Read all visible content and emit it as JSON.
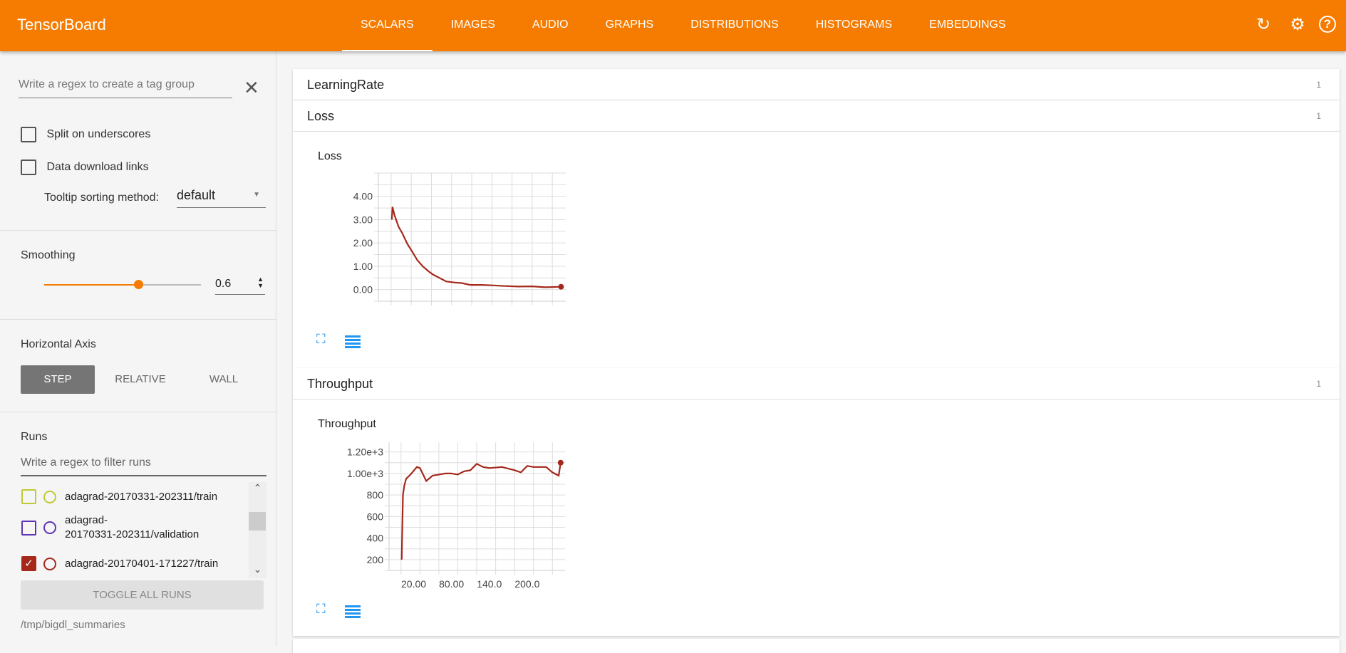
{
  "app": {
    "title": "TensorBoard"
  },
  "tabs": [
    "SCALARS",
    "IMAGES",
    "AUDIO",
    "GRAPHS",
    "DISTRIBUTIONS",
    "HISTOGRAMS",
    "EMBEDDINGS"
  ],
  "selected_tab": "SCALARS",
  "header_icons": [
    "refresh-icon",
    "settings-icon",
    "help-icon"
  ],
  "accent": "#f57c00",
  "sidebar": {
    "tag_group_placeholder": "Write a regex to create a tag group",
    "split_on_underscores": {
      "label": "Split on underscores",
      "checked": false
    },
    "data_download_links": {
      "label": "Data download links",
      "checked": false
    },
    "tooltip_sorting": {
      "label": "Tooltip sorting method:",
      "value": "default"
    },
    "smoothing": {
      "label": "Smoothing",
      "value": "0.6",
      "fraction": 0.6
    },
    "horizontal_axis": {
      "label": "Horizontal Axis",
      "options": [
        "STEP",
        "RELATIVE",
        "WALL"
      ],
      "selected": "STEP"
    },
    "runs": {
      "label": "Runs",
      "filter_placeholder": "Write a regex to filter runs",
      "items": [
        {
          "name": "adagrad-20170331-202311/train",
          "color": "#c0ca33",
          "checked": false
        },
        {
          "name": "adagrad-\n20170331-202311/validation",
          "color": "#5e35b1",
          "checked": false
        },
        {
          "name": "adagrad-20170401-171227/train",
          "color": "#a5281b",
          "checked": true
        }
      ],
      "toggle_all": "TOGGLE ALL RUNS"
    },
    "logdir": "/tmp/bigdl_summaries"
  },
  "groups": [
    {
      "name": "LearningRate",
      "count": "1"
    },
    {
      "name": "Loss",
      "count": "1"
    },
    {
      "name": "Throughput",
      "count": "1"
    }
  ],
  "chart_data": [
    {
      "type": "line",
      "title": "Loss",
      "ylim": [
        -0.5,
        5.0
      ],
      "xlim": [
        -19,
        260
      ],
      "yticks": [
        "0.00",
        "1.00",
        "2.00",
        "3.00",
        "4.00"
      ],
      "xticks": [],
      "series": [
        {
          "color": "#a5281b",
          "x": [
            1,
            2,
            5,
            11,
            17,
            24,
            32,
            39,
            47,
            55,
            62,
            72,
            82,
            95,
            105,
            118,
            135,
            150,
            170,
            190,
            210,
            230,
            253
          ],
          "y": [
            3.0,
            3.55,
            3.2,
            2.7,
            2.4,
            1.97,
            1.6,
            1.26,
            1.0,
            0.8,
            0.65,
            0.5,
            0.35,
            0.3,
            0.28,
            0.2,
            0.2,
            0.18,
            0.15,
            0.13,
            0.14,
            0.1,
            0.12
          ]
        }
      ]
    },
    {
      "type": "line",
      "title": "Throughput",
      "ylim": [
        100,
        1290
      ],
      "xlim": [
        -19,
        260
      ],
      "yticks": [
        "200",
        "400",
        "600",
        "800",
        "1.00e+3",
        "1.20e+3"
      ],
      "xticks": [
        "20.00",
        "80.00",
        "140.0",
        "200.0"
      ],
      "series": [
        {
          "color": "#a5281b",
          "x": [
            1,
            3,
            5,
            8,
            15,
            25,
            30,
            40,
            50,
            60,
            70,
            80,
            90,
            100,
            110,
            120,
            130,
            140,
            160,
            180,
            190,
            200,
            210,
            220,
            230,
            240,
            250,
            253
          ],
          "y": [
            200,
            800,
            880,
            950,
            990,
            1060,
            1050,
            930,
            980,
            990,
            1000,
            1000,
            990,
            1020,
            1030,
            1090,
            1060,
            1050,
            1060,
            1030,
            1010,
            1070,
            1060,
            1060,
            1060,
            1010,
            980,
            1100
          ]
        }
      ]
    }
  ]
}
